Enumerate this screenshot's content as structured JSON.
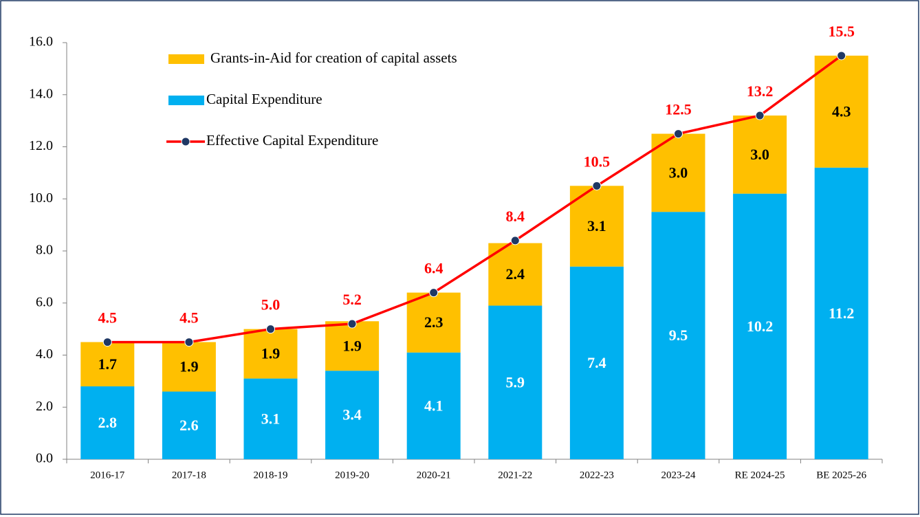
{
  "chart_data": {
    "type": "stacked_bar_line",
    "categories": [
      "2016-17",
      "2017-18",
      "2018-19",
      "2019-20",
      "2020-21",
      "2021-22",
      "2022-23",
      "2023-24",
      "RE 2024-25",
      "BE 2025-26"
    ],
    "series": [
      {
        "name": "Capital Expenditure",
        "type": "bar",
        "color": "#00b0f0",
        "values": [
          2.8,
          2.6,
          3.1,
          3.4,
          4.1,
          5.9,
          7.4,
          9.5,
          10.2,
          11.2
        ],
        "value_labels": [
          "2.8",
          "2.6",
          "3.1",
          "3.4",
          "4.1",
          "5.9",
          "7.4",
          "9.5",
          "10.2",
          "11.2"
        ]
      },
      {
        "name": "Grants-in-Aid for creation of capital assets",
        "type": "bar",
        "color": "#ffc000",
        "values": [
          1.7,
          1.9,
          1.9,
          1.9,
          2.3,
          2.4,
          3.1,
          3.0,
          3.0,
          4.3
        ],
        "value_labels": [
          "1.7",
          "1.9",
          "1.9",
          "1.9",
          "2.3",
          "2.4",
          "3.1",
          "3.0",
          "3.0",
          "4.3"
        ]
      },
      {
        "name": "Effective Capital Expenditure",
        "type": "line",
        "color": "#ff0000",
        "marker_color": "#1f3864",
        "values": [
          4.5,
          4.5,
          5.0,
          5.2,
          6.4,
          8.4,
          10.5,
          12.5,
          13.2,
          15.5
        ],
        "value_labels": [
          "4.5",
          "4.5",
          "5.0",
          "5.2",
          "6.4",
          "8.4",
          "10.5",
          "12.5",
          "13.2",
          "15.5"
        ]
      }
    ],
    "ylim": [
      0,
      16
    ],
    "yticks": [
      {
        "value": 0,
        "label": "0.0"
      },
      {
        "value": 2,
        "label": "2.0"
      },
      {
        "value": 4,
        "label": "4.0"
      },
      {
        "value": 6,
        "label": "6.0"
      },
      {
        "value": 8,
        "label": "8.0"
      },
      {
        "value": 10,
        "label": "10.0"
      },
      {
        "value": 12,
        "label": "12.0"
      },
      {
        "value": 14,
        "label": "14.0"
      },
      {
        "value": 16,
        "label": "16.0"
      }
    ],
    "grid": false
  }
}
